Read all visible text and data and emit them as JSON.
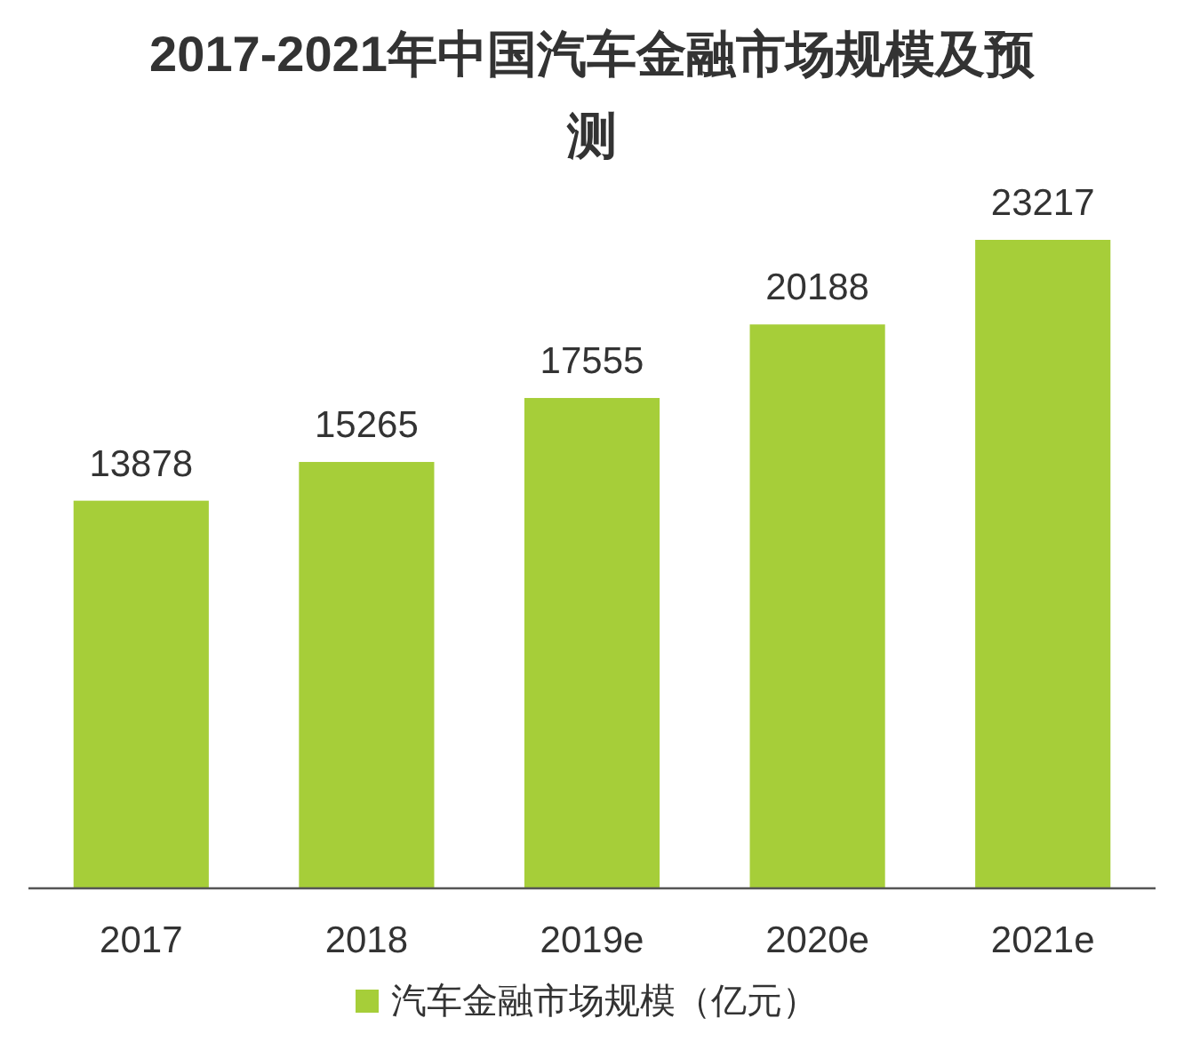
{
  "chart_data": {
    "type": "bar",
    "title": "2017-2021年中国汽车金融市场规模及预测",
    "categories": [
      "2017",
      "2018",
      "2019e",
      "2020e",
      "2021e"
    ],
    "series": [
      {
        "name": "汽车金融市场规模（亿元）",
        "color": "#a6ce39",
        "values": [
          13878,
          15265,
          17555,
          20188,
          23217
        ]
      }
    ],
    "data_labels": true,
    "legend": "bottom"
  }
}
